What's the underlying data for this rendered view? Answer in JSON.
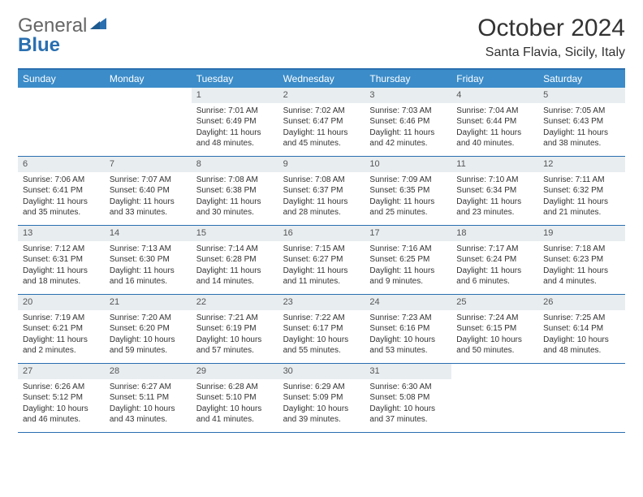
{
  "logo": {
    "part1": "General",
    "part2": "Blue"
  },
  "colors": {
    "accent": "#3b8cc9",
    "border": "#2a6fb0",
    "daynum_bg": "#e8edf0",
    "text": "#333333"
  },
  "title": "October 2024",
  "location": "Santa Flavia, Sicily, Italy",
  "day_names": [
    "Sunday",
    "Monday",
    "Tuesday",
    "Wednesday",
    "Thursday",
    "Friday",
    "Saturday"
  ],
  "weeks": [
    [
      null,
      null,
      {
        "n": "1",
        "sr": "Sunrise: 7:01 AM",
        "ss": "Sunset: 6:49 PM",
        "dl1": "Daylight: 11 hours",
        "dl2": "and 48 minutes."
      },
      {
        "n": "2",
        "sr": "Sunrise: 7:02 AM",
        "ss": "Sunset: 6:47 PM",
        "dl1": "Daylight: 11 hours",
        "dl2": "and 45 minutes."
      },
      {
        "n": "3",
        "sr": "Sunrise: 7:03 AM",
        "ss": "Sunset: 6:46 PM",
        "dl1": "Daylight: 11 hours",
        "dl2": "and 42 minutes."
      },
      {
        "n": "4",
        "sr": "Sunrise: 7:04 AM",
        "ss": "Sunset: 6:44 PM",
        "dl1": "Daylight: 11 hours",
        "dl2": "and 40 minutes."
      },
      {
        "n": "5",
        "sr": "Sunrise: 7:05 AM",
        "ss": "Sunset: 6:43 PM",
        "dl1": "Daylight: 11 hours",
        "dl2": "and 38 minutes."
      }
    ],
    [
      {
        "n": "6",
        "sr": "Sunrise: 7:06 AM",
        "ss": "Sunset: 6:41 PM",
        "dl1": "Daylight: 11 hours",
        "dl2": "and 35 minutes."
      },
      {
        "n": "7",
        "sr": "Sunrise: 7:07 AM",
        "ss": "Sunset: 6:40 PM",
        "dl1": "Daylight: 11 hours",
        "dl2": "and 33 minutes."
      },
      {
        "n": "8",
        "sr": "Sunrise: 7:08 AM",
        "ss": "Sunset: 6:38 PM",
        "dl1": "Daylight: 11 hours",
        "dl2": "and 30 minutes."
      },
      {
        "n": "9",
        "sr": "Sunrise: 7:08 AM",
        "ss": "Sunset: 6:37 PM",
        "dl1": "Daylight: 11 hours",
        "dl2": "and 28 minutes."
      },
      {
        "n": "10",
        "sr": "Sunrise: 7:09 AM",
        "ss": "Sunset: 6:35 PM",
        "dl1": "Daylight: 11 hours",
        "dl2": "and 25 minutes."
      },
      {
        "n": "11",
        "sr": "Sunrise: 7:10 AM",
        "ss": "Sunset: 6:34 PM",
        "dl1": "Daylight: 11 hours",
        "dl2": "and 23 minutes."
      },
      {
        "n": "12",
        "sr": "Sunrise: 7:11 AM",
        "ss": "Sunset: 6:32 PM",
        "dl1": "Daylight: 11 hours",
        "dl2": "and 21 minutes."
      }
    ],
    [
      {
        "n": "13",
        "sr": "Sunrise: 7:12 AM",
        "ss": "Sunset: 6:31 PM",
        "dl1": "Daylight: 11 hours",
        "dl2": "and 18 minutes."
      },
      {
        "n": "14",
        "sr": "Sunrise: 7:13 AM",
        "ss": "Sunset: 6:30 PM",
        "dl1": "Daylight: 11 hours",
        "dl2": "and 16 minutes."
      },
      {
        "n": "15",
        "sr": "Sunrise: 7:14 AM",
        "ss": "Sunset: 6:28 PM",
        "dl1": "Daylight: 11 hours",
        "dl2": "and 14 minutes."
      },
      {
        "n": "16",
        "sr": "Sunrise: 7:15 AM",
        "ss": "Sunset: 6:27 PM",
        "dl1": "Daylight: 11 hours",
        "dl2": "and 11 minutes."
      },
      {
        "n": "17",
        "sr": "Sunrise: 7:16 AM",
        "ss": "Sunset: 6:25 PM",
        "dl1": "Daylight: 11 hours",
        "dl2": "and 9 minutes."
      },
      {
        "n": "18",
        "sr": "Sunrise: 7:17 AM",
        "ss": "Sunset: 6:24 PM",
        "dl1": "Daylight: 11 hours",
        "dl2": "and 6 minutes."
      },
      {
        "n": "19",
        "sr": "Sunrise: 7:18 AM",
        "ss": "Sunset: 6:23 PM",
        "dl1": "Daylight: 11 hours",
        "dl2": "and 4 minutes."
      }
    ],
    [
      {
        "n": "20",
        "sr": "Sunrise: 7:19 AM",
        "ss": "Sunset: 6:21 PM",
        "dl1": "Daylight: 11 hours",
        "dl2": "and 2 minutes."
      },
      {
        "n": "21",
        "sr": "Sunrise: 7:20 AM",
        "ss": "Sunset: 6:20 PM",
        "dl1": "Daylight: 10 hours",
        "dl2": "and 59 minutes."
      },
      {
        "n": "22",
        "sr": "Sunrise: 7:21 AM",
        "ss": "Sunset: 6:19 PM",
        "dl1": "Daylight: 10 hours",
        "dl2": "and 57 minutes."
      },
      {
        "n": "23",
        "sr": "Sunrise: 7:22 AM",
        "ss": "Sunset: 6:17 PM",
        "dl1": "Daylight: 10 hours",
        "dl2": "and 55 minutes."
      },
      {
        "n": "24",
        "sr": "Sunrise: 7:23 AM",
        "ss": "Sunset: 6:16 PM",
        "dl1": "Daylight: 10 hours",
        "dl2": "and 53 minutes."
      },
      {
        "n": "25",
        "sr": "Sunrise: 7:24 AM",
        "ss": "Sunset: 6:15 PM",
        "dl1": "Daylight: 10 hours",
        "dl2": "and 50 minutes."
      },
      {
        "n": "26",
        "sr": "Sunrise: 7:25 AM",
        "ss": "Sunset: 6:14 PM",
        "dl1": "Daylight: 10 hours",
        "dl2": "and 48 minutes."
      }
    ],
    [
      {
        "n": "27",
        "sr": "Sunrise: 6:26 AM",
        "ss": "Sunset: 5:12 PM",
        "dl1": "Daylight: 10 hours",
        "dl2": "and 46 minutes."
      },
      {
        "n": "28",
        "sr": "Sunrise: 6:27 AM",
        "ss": "Sunset: 5:11 PM",
        "dl1": "Daylight: 10 hours",
        "dl2": "and 43 minutes."
      },
      {
        "n": "29",
        "sr": "Sunrise: 6:28 AM",
        "ss": "Sunset: 5:10 PM",
        "dl1": "Daylight: 10 hours",
        "dl2": "and 41 minutes."
      },
      {
        "n": "30",
        "sr": "Sunrise: 6:29 AM",
        "ss": "Sunset: 5:09 PM",
        "dl1": "Daylight: 10 hours",
        "dl2": "and 39 minutes."
      },
      {
        "n": "31",
        "sr": "Sunrise: 6:30 AM",
        "ss": "Sunset: 5:08 PM",
        "dl1": "Daylight: 10 hours",
        "dl2": "and 37 minutes."
      },
      null,
      null
    ]
  ]
}
